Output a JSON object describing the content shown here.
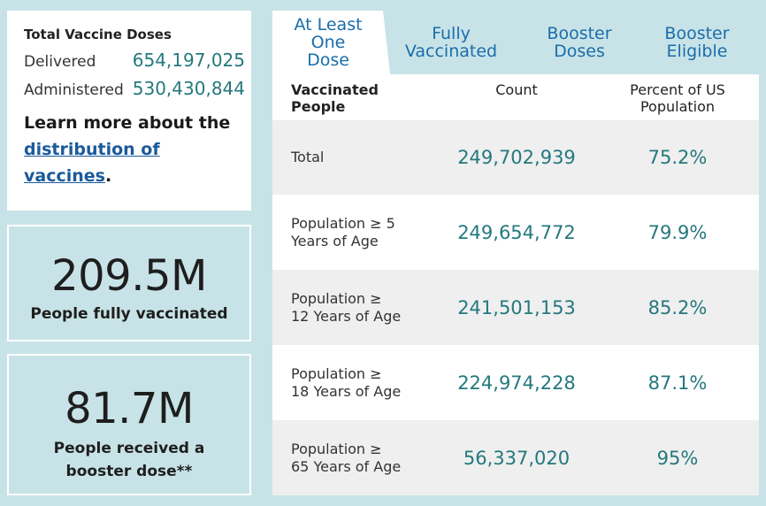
{
  "doses": {
    "title": "Total Vaccine Doses",
    "delivered_label": "Delivered",
    "delivered_value": "654,197,025",
    "administered_label": "Administered",
    "administered_value": "530,430,844",
    "learn_prefix": "Learn more about the",
    "learn_link": "distribution of vaccines",
    "learn_suffix": "."
  },
  "fully_card": {
    "number": "209.5M",
    "label": "People fully vaccinated"
  },
  "booster_card": {
    "number": "81.7M",
    "label": "People received a booster dose**"
  },
  "tabs": [
    {
      "label": "At Least One Dose",
      "active": true
    },
    {
      "label": "Fully Vaccinated",
      "active": false
    },
    {
      "label": "Booster Doses",
      "active": false
    },
    {
      "label": "Booster Eligible",
      "active": false
    }
  ],
  "table": {
    "headers": [
      "Vaccinated People",
      "Count",
      "Percent of US Population"
    ],
    "rows": [
      {
        "group": "Total",
        "count": "249,702,939",
        "percent": "75.2%"
      },
      {
        "group": "Population ≥ 5 Years of Age",
        "count": "249,654,772",
        "percent": "79.9%"
      },
      {
        "group": "Population ≥ 12 Years of Age",
        "count": "241,501,153",
        "percent": "85.2%"
      },
      {
        "group": "Population ≥ 18 Years of Age",
        "count": "224,974,228",
        "percent": "87.1%"
      },
      {
        "group": "Population ≥ 65 Years of Age",
        "count": "56,337,020",
        "percent": "95%"
      }
    ]
  },
  "colors": {
    "background": "#c8e3e7",
    "accent_value": "#24787d",
    "tab_text": "#1a6dab",
    "link": "#1a5a9a",
    "row_shade": "#efefef"
  }
}
